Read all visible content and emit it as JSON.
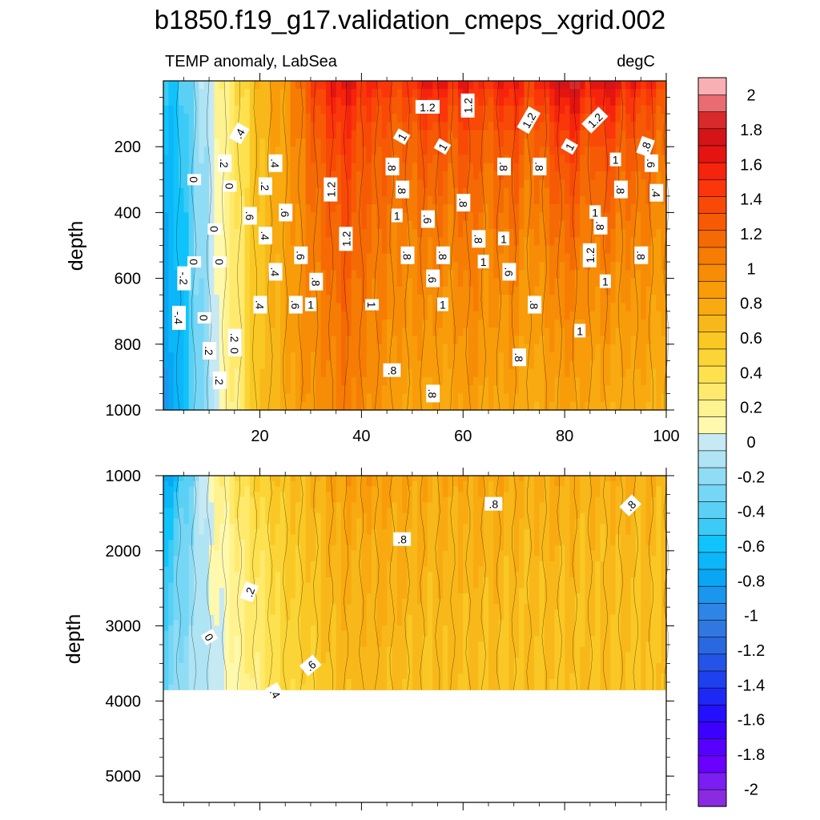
{
  "chart_data": {
    "type": "heatmap",
    "title": "b1850.f19_g17.validation_cmeps_xgrid.002",
    "subtitle_left": "TEMP anomaly, LabSea",
    "subtitle_right": "degC",
    "colorbar": {
      "levels": [
        -2.1,
        -2.0,
        -1.9,
        -1.8,
        -1.7,
        -1.6,
        -1.5,
        -1.4,
        -1.3,
        -1.2,
        -1.1,
        -1.0,
        -0.9,
        -0.8,
        -0.7,
        -0.6,
        -0.5,
        -0.4,
        -0.3,
        -0.2,
        -0.1,
        0.0,
        0.1,
        0.2,
        0.3,
        0.4,
        0.5,
        0.6,
        0.7,
        0.8,
        0.9,
        1.0,
        1.1,
        1.2,
        1.3,
        1.4,
        1.5,
        1.6,
        1.7,
        1.8,
        1.9,
        2.0,
        2.1
      ],
      "colors": [
        "#8a2be2",
        "#7a1ef2",
        "#6a00ff",
        "#5600ff",
        "#3c00ff",
        "#2410ff",
        "#1e28f5",
        "#1e40ee",
        "#2454e6",
        "#2a68e2",
        "#3078e0",
        "#2d86e5",
        "#1a96ee",
        "#0aa6f4",
        "#0cb6f8",
        "#10c4fb",
        "#3ccaf6",
        "#5ad0f5",
        "#76d6f5",
        "#90dcf5",
        "#aee4f4",
        "#c6e9f3",
        "#fff9ae",
        "#fff290",
        "#ffea6e",
        "#fde14f",
        "#fbd537",
        "#fac824",
        "#f8b81a",
        "#f8aa10",
        "#f89c0a",
        "#f78c06",
        "#f67c04",
        "#f56a04",
        "#f75a05",
        "#f84a06",
        "#fa360a",
        "#f6240c",
        "#e41410",
        "#d41416",
        "#d82a2c",
        "#e86c70",
        "#f8b0b4"
      ],
      "tick_labels": [
        "2",
        "1.8",
        "1.6",
        "1.4",
        "1.2",
        "1",
        "0.8",
        "0.6",
        "0.4",
        "0.2",
        "0",
        "-0.2",
        "-0.4",
        "-0.6",
        "-0.8",
        "-1",
        "-1.2",
        "-1.4",
        "-1.6",
        "-1.8",
        "-2"
      ],
      "tick_values": [
        2.0,
        1.8,
        1.6,
        1.4,
        1.2,
        1.0,
        0.8,
        0.6,
        0.4,
        0.2,
        0.0,
        -0.2,
        -0.4,
        -0.6,
        -0.8,
        -1.0,
        -1.2,
        -1.4,
        -1.6,
        -1.8,
        -2.0
      ]
    },
    "panels": [
      {
        "name": "upper",
        "xlabel": "",
        "ylabel": "depth",
        "xlim": [
          1,
          100
        ],
        "ylim": [
          0,
          1000
        ],
        "y_inverted": true,
        "xticks": [
          20,
          40,
          60,
          80,
          100
        ],
        "xtick_labels": [
          "20",
          "40",
          "60",
          "80",
          "100"
        ],
        "yticks": [
          200,
          400,
          600,
          800,
          1000
        ],
        "ytick_labels": [
          "200",
          "400",
          "600",
          "800",
          "1000"
        ],
        "data_max_depth": 1000,
        "columns_x": [
          1,
          4,
          7,
          10,
          13,
          16,
          19,
          22,
          25,
          28,
          31,
          34,
          37,
          40,
          43,
          46,
          49,
          52,
          55,
          58,
          61,
          64,
          67,
          70,
          73,
          76,
          79,
          82,
          85,
          88,
          91,
          94,
          97,
          100
        ],
        "columns_surface": [
          -0.4,
          -0.45,
          -0.2,
          0.1,
          0.3,
          0.5,
          0.7,
          0.9,
          1.0,
          1.3,
          1.6,
          1.8,
          1.9,
          1.7,
          1.7,
          1.6,
          1.6,
          1.8,
          1.9,
          1.7,
          1.9,
          1.6,
          1.8,
          1.9,
          1.6,
          1.8,
          2.0,
          2.1,
          1.7,
          2.1,
          1.8,
          1.8,
          1.7,
          1.6
        ],
        "columns_deep": [
          -0.8,
          -0.7,
          -0.3,
          -0.1,
          0.2,
          0.35,
          0.65,
          0.75,
          0.85,
          0.95,
          1.0,
          1.05,
          1.15,
          1.05,
          1.0,
          0.95,
          0.9,
          0.9,
          0.85,
          0.85,
          0.95,
          0.9,
          0.85,
          0.9,
          0.8,
          0.85,
          0.9,
          0.9,
          0.85,
          0.85,
          0.8,
          0.85,
          0.8,
          0.75
        ],
        "contour_labels": [
          {
            "text": "1.2",
            "x": 53,
            "depth": 80,
            "angle": 0
          },
          {
            "text": "1.2",
            "x": 61,
            "depth": 75,
            "angle": -90
          },
          {
            "text": "1.2",
            "x": 73,
            "depth": 120,
            "angle": -60
          },
          {
            "text": "1.2",
            "x": 86,
            "depth": 120,
            "angle": -45
          },
          {
            "text": "1.2",
            "x": 34,
            "depth": 330,
            "angle": -90
          },
          {
            "text": "1.2",
            "x": 37,
            "depth": 480,
            "angle": -90
          },
          {
            "text": "1.2",
            "x": 85,
            "depth": 530,
            "angle": -90
          },
          {
            "text": "1",
            "x": 48,
            "depth": 170,
            "angle": -60
          },
          {
            "text": "1",
            "x": 56,
            "depth": 200,
            "angle": -60
          },
          {
            "text": "1",
            "x": 81,
            "depth": 200,
            "angle": -60
          },
          {
            "text": "1",
            "x": 90,
            "depth": 240,
            "angle": 0
          },
          {
            "text": "1",
            "x": 47,
            "depth": 410,
            "angle": 0
          },
          {
            "text": "1",
            "x": 86,
            "depth": 400,
            "angle": 0
          },
          {
            "text": "1",
            "x": 68,
            "depth": 480,
            "angle": 0
          },
          {
            "text": "1",
            "x": 64,
            "depth": 550,
            "angle": 0
          },
          {
            "text": "1",
            "x": 88,
            "depth": 610,
            "angle": 0
          },
          {
            "text": "1",
            "x": 30,
            "depth": 680,
            "angle": 0
          },
          {
            "text": "1",
            "x": 42,
            "depth": 680,
            "angle": 90
          },
          {
            "text": "1",
            "x": 56,
            "depth": 680,
            "angle": 0
          },
          {
            "text": "1",
            "x": 83,
            "depth": 760,
            "angle": 0
          },
          {
            "text": ".8",
            "x": 46,
            "depth": 260,
            "angle": 90
          },
          {
            "text": ".8",
            "x": 48,
            "depth": 330,
            "angle": 90
          },
          {
            "text": ".8",
            "x": 68,
            "depth": 260,
            "angle": 90
          },
          {
            "text": ".8",
            "x": 75,
            "depth": 260,
            "angle": 90
          },
          {
            "text": ".8",
            "x": 60,
            "depth": 370,
            "angle": 90
          },
          {
            "text": ".8",
            "x": 91,
            "depth": 330,
            "angle": 90
          },
          {
            "text": ".8",
            "x": 96,
            "depth": 200,
            "angle": -70
          },
          {
            "text": ".8",
            "x": 87,
            "depth": 440,
            "angle": 90
          },
          {
            "text": ".8",
            "x": 63,
            "depth": 480,
            "angle": 90
          },
          {
            "text": ".8",
            "x": 49,
            "depth": 530,
            "angle": 90
          },
          {
            "text": ".8",
            "x": 56,
            "depth": 530,
            "angle": 90
          },
          {
            "text": ".8",
            "x": 95,
            "depth": 530,
            "angle": 90
          },
          {
            "text": ".8",
            "x": 31,
            "depth": 610,
            "angle": 90
          },
          {
            "text": ".8",
            "x": 74,
            "depth": 680,
            "angle": 90
          },
          {
            "text": ".8",
            "x": 71,
            "depth": 840,
            "angle": 90
          },
          {
            "text": ".8",
            "x": 46,
            "depth": 880,
            "angle": 0
          },
          {
            "text": ".8",
            "x": 54,
            "depth": 950,
            "angle": 90
          },
          {
            "text": ".6",
            "x": 53,
            "depth": 420,
            "angle": 90
          },
          {
            "text": ".6",
            "x": 54,
            "depth": 600,
            "angle": 90
          },
          {
            "text": ".6",
            "x": 28,
            "depth": 530,
            "angle": 90
          },
          {
            "text": ".6",
            "x": 27,
            "depth": 680,
            "angle": 90
          },
          {
            "text": ".6",
            "x": 69,
            "depth": 580,
            "angle": 90
          },
          {
            "text": ".6",
            "x": 97,
            "depth": 250,
            "angle": 90
          },
          {
            "text": ".6",
            "x": 18,
            "depth": 410,
            "angle": 90
          },
          {
            "text": ".6",
            "x": 25,
            "depth": 400,
            "angle": 90
          },
          {
            "text": ".4",
            "x": 16,
            "depth": 160,
            "angle": -60
          },
          {
            "text": ".4",
            "x": 23,
            "depth": 250,
            "angle": 90
          },
          {
            "text": ".4",
            "x": 21,
            "depth": 470,
            "angle": 90
          },
          {
            "text": ".4",
            "x": 23,
            "depth": 580,
            "angle": 90
          },
          {
            "text": ".4",
            "x": 20,
            "depth": 680,
            "angle": 90
          },
          {
            "text": ".4",
            "x": 98,
            "depth": 340,
            "angle": 90
          },
          {
            "text": ".2",
            "x": 13,
            "depth": 250,
            "angle": 90
          },
          {
            "text": ".2",
            "x": 21,
            "depth": 320,
            "angle": 90
          },
          {
            "text": ".2",
            "x": 15,
            "depth": 780,
            "angle": 90
          },
          {
            "text": ".2",
            "x": 10,
            "depth": 820,
            "angle": 90
          },
          {
            "text": ".2",
            "x": 12,
            "depth": 910,
            "angle": 90
          },
          {
            "text": "0",
            "x": 7,
            "depth": 300,
            "angle": 90
          },
          {
            "text": "0",
            "x": 14,
            "depth": 320,
            "angle": 90
          },
          {
            "text": "0",
            "x": 11,
            "depth": 450,
            "angle": 90
          },
          {
            "text": "0",
            "x": 7,
            "depth": 550,
            "angle": 90
          },
          {
            "text": "0",
            "x": 12,
            "depth": 550,
            "angle": 90
          },
          {
            "text": "0",
            "x": 9,
            "depth": 720,
            "angle": 90
          },
          {
            "text": "0",
            "x": 15,
            "depth": 820,
            "angle": 90
          },
          {
            "text": "-.2",
            "x": 5,
            "depth": 600,
            "angle": 90
          },
          {
            "text": "-.4",
            "x": 4,
            "depth": 720,
            "angle": 90
          }
        ]
      },
      {
        "name": "lower",
        "xlabel": "",
        "ylabel": "depth",
        "xlim": [
          1,
          100
        ],
        "ylim": [
          1000,
          5350
        ],
        "y_inverted": true,
        "xticks": [
          20,
          40,
          60,
          80,
          100
        ],
        "xtick_labels": [],
        "yticks": [
          1000,
          2000,
          3000,
          4000,
          5000
        ],
        "ytick_labels": [
          "1000",
          "2000",
          "3000",
          "4000",
          "5000"
        ],
        "data_max_depth": 3850,
        "columns_x": [
          1,
          4,
          7,
          10,
          13,
          16,
          19,
          22,
          25,
          28,
          31,
          34,
          37,
          40,
          43,
          46,
          49,
          52,
          55,
          58,
          61,
          64,
          67,
          70,
          73,
          76,
          79,
          82,
          85,
          88,
          91,
          94,
          97,
          100
        ],
        "columns_surface": [
          -0.9,
          -0.6,
          -0.2,
          0.2,
          0.35,
          0.5,
          0.6,
          0.7,
          0.75,
          0.8,
          0.85,
          0.95,
          1.0,
          1.0,
          0.98,
          0.95,
          0.92,
          0.9,
          0.9,
          0.92,
          0.88,
          0.9,
          0.92,
          0.88,
          0.85,
          0.86,
          0.88,
          0.84,
          0.82,
          0.85,
          0.86,
          0.8,
          0.82,
          0.8
        ],
        "columns_deep": [
          -0.3,
          -0.15,
          -0.1,
          0.0,
          0.1,
          0.2,
          0.3,
          0.4,
          0.5,
          0.55,
          0.6,
          0.68,
          0.72,
          0.74,
          0.74,
          0.72,
          0.72,
          0.7,
          0.7,
          0.72,
          0.7,
          0.7,
          0.7,
          0.68,
          0.7,
          0.68,
          0.68,
          0.7,
          0.68,
          0.7,
          0.66,
          0.68,
          0.68,
          0.66
        ],
        "contour_labels": [
          {
            "text": ".8",
            "x": 66,
            "depth": 1380,
            "angle": 0
          },
          {
            "text": ".8",
            "x": 93,
            "depth": 1400,
            "angle": -45
          },
          {
            "text": ".8",
            "x": 48,
            "depth": 1850,
            "angle": 0
          },
          {
            "text": ".2",
            "x": 18,
            "depth": 2550,
            "angle": -70
          },
          {
            "text": "0",
            "x": 10,
            "depth": 3150,
            "angle": 60
          },
          {
            "text": ".6",
            "x": 30,
            "depth": 3530,
            "angle": -40
          },
          {
            "text": ".4",
            "x": 23,
            "depth": 3900,
            "angle": 60
          }
        ]
      }
    ]
  }
}
